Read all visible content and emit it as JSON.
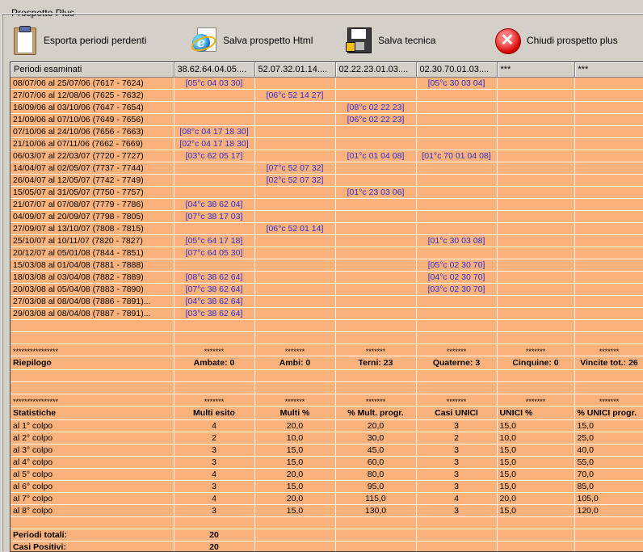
{
  "window": {
    "title": "Prospetto Plus"
  },
  "toolbar": {
    "export_label": "Esporta periodi perdenti",
    "html_label": "Salva prospetto Html",
    "tech_label": "Salva tecnica",
    "close_label": "Chiudi prospetto plus"
  },
  "columns": [
    "Periodi esaminati",
    "38.62.64.04.05....",
    "52.07.32.01.14....",
    "02.22.23.01.03....",
    "02.30.70.01.03....",
    "***",
    "***"
  ],
  "periods": [
    {
      "period": "08/07/06 al 25/07/06  (7617 - 7624)",
      "c": [
        "[05°c 04 03 30]",
        "",
        "",
        "[05°c 30 03 04]",
        "",
        ""
      ]
    },
    {
      "period": "27/07/06 al 12/08/06  (7625 - 7632)",
      "c": [
        "",
        "[06°c 52 14 27]",
        "",
        "",
        "",
        ""
      ]
    },
    {
      "period": "16/09/06 al 03/10/06  (7647 - 7654)",
      "c": [
        "",
        "",
        "[08°c 02 22 23]",
        "",
        "",
        ""
      ]
    },
    {
      "period": "21/09/06 al 07/10/06  (7649 - 7656)",
      "c": [
        "",
        "",
        "[06°c 02 22 23]",
        "",
        "",
        ""
      ]
    },
    {
      "period": "07/10/06 al 24/10/06  (7656 - 7663)",
      "c": [
        "[08°c 04 17 18 30]",
        "",
        "",
        "",
        "",
        ""
      ]
    },
    {
      "period": "21/10/06 al 07/11/06  (7662 - 7669)",
      "c": [
        "[02°c 04 17 18 30]",
        "",
        "",
        "",
        "",
        ""
      ]
    },
    {
      "period": "06/03/07 al 22/03/07  (7720 - 7727)",
      "c": [
        "[03°c 62 05 17]",
        "",
        "[01°c 01 04 08]",
        "[01°c 70 01 04 08]",
        "",
        ""
      ]
    },
    {
      "period": "14/04/07 al 02/05/07  (7737 - 7744)",
      "c": [
        "",
        "[07°c 52 07 32]",
        "",
        "",
        "",
        ""
      ]
    },
    {
      "period": "26/04/07 al 12/05/07  (7742 - 7749)",
      "c": [
        "",
        "[02°c 52 07 32]",
        "",
        "",
        "",
        ""
      ]
    },
    {
      "period": "15/05/07 al 31/05/07  (7750 - 7757)",
      "c": [
        "",
        "",
        "[01°c 23 03 06]",
        "",
        "",
        ""
      ]
    },
    {
      "period": "21/07/07 al 07/08/07  (7779 - 7786)",
      "c": [
        "[04°c 38 62 04]",
        "",
        "",
        "",
        "",
        ""
      ]
    },
    {
      "period": "04/09/07 al 20/09/07  (7798 - 7805)",
      "c": [
        "[07°c 38 17 03]",
        "",
        "",
        "",
        "",
        ""
      ]
    },
    {
      "period": "27/09/07 al 13/10/07  (7808 - 7815)",
      "c": [
        "",
        "[06°c 52 01 14]",
        "",
        "",
        "",
        ""
      ]
    },
    {
      "period": "25/10/07 al 10/11/07  (7820 - 7827)",
      "c": [
        "[05°c 64 17 18]",
        "",
        "",
        "[01°c 30 03 08]",
        "",
        ""
      ]
    },
    {
      "period": "20/12/07 al 05/01/08  (7844 - 7851)",
      "c": [
        "[07°c 64 05 30]",
        "",
        "",
        "",
        "",
        ""
      ]
    },
    {
      "period": "15/03/08 al 01/04/08  (7881 - 7888)",
      "c": [
        "",
        "",
        "",
        "[05°c 02 30 70]",
        "",
        ""
      ]
    },
    {
      "period": "18/03/08 al 03/04/08  (7882 - 7889)",
      "c": [
        "[08°c 38 62 64]",
        "",
        "",
        "[04°c 02 30 70]",
        "",
        ""
      ]
    },
    {
      "period": "20/03/08 al 05/04/08  (7883 - 7890)",
      "c": [
        "[07°c 38 62 64]",
        "",
        "",
        "[03°c 02 30 70]",
        "",
        ""
      ]
    },
    {
      "period": "27/03/08 al 08/04/08  (7886 - 7891)...",
      "c": [
        "[04°c 38 62 64]",
        "",
        "",
        "",
        "",
        ""
      ]
    },
    {
      "period": "29/03/08 al 08/04/08  (7887 - 7891)...",
      "c": [
        "[03°c 38 62 64]",
        "",
        "",
        "",
        "",
        ""
      ]
    }
  ],
  "riepilogo": {
    "stars_long": "****************",
    "stars_short": "*******",
    "label": "Riepilogo",
    "cells": [
      "Ambate: 0",
      "Ambi: 0",
      "Terni: 23",
      "Quaterne: 3",
      "Cinquine: 0",
      "Vincite tot.: 26"
    ]
  },
  "statistiche": {
    "stars_long": "****************",
    "stars_short": "*******",
    "label": "Statistiche",
    "headers": [
      "Multi esito",
      "Multi %",
      "% Mult. progr.",
      "Casi UNICI",
      "UNICI %",
      "% UNICI progr."
    ],
    "rows": [
      {
        "label": "al 1° colpo",
        "v": [
          "4",
          "20,0",
          "20,0",
          "3",
          "15,0",
          "15,0"
        ]
      },
      {
        "label": "al 2° colpo",
        "v": [
          "2",
          "10,0",
          "30,0",
          "2",
          "10,0",
          "25,0"
        ]
      },
      {
        "label": "al 3° colpo",
        "v": [
          "3",
          "15,0",
          "45,0",
          "3",
          "15,0",
          "40,0"
        ]
      },
      {
        "label": "al 4° colpo",
        "v": [
          "3",
          "15,0",
          "60,0",
          "3",
          "15,0",
          "55,0"
        ]
      },
      {
        "label": "al 5° colpo",
        "v": [
          "4",
          "20,0",
          "80,0",
          "3",
          "15,0",
          "70,0"
        ]
      },
      {
        "label": "al 6° colpo",
        "v": [
          "3",
          "15,0",
          "95,0",
          "3",
          "15,0",
          "85,0"
        ]
      },
      {
        "label": "al 7° colpo",
        "v": [
          "4",
          "20,0",
          "115,0",
          "4",
          "20,0",
          "105,0"
        ]
      },
      {
        "label": "al 8° colpo",
        "v": [
          "3",
          "15,0",
          "130,0",
          "3",
          "15,0",
          "120,0"
        ]
      }
    ]
  },
  "totals": [
    {
      "label": "Periodi totali:",
      "value": "20"
    },
    {
      "label": "Casi Positivi:",
      "value": "20"
    }
  ]
}
